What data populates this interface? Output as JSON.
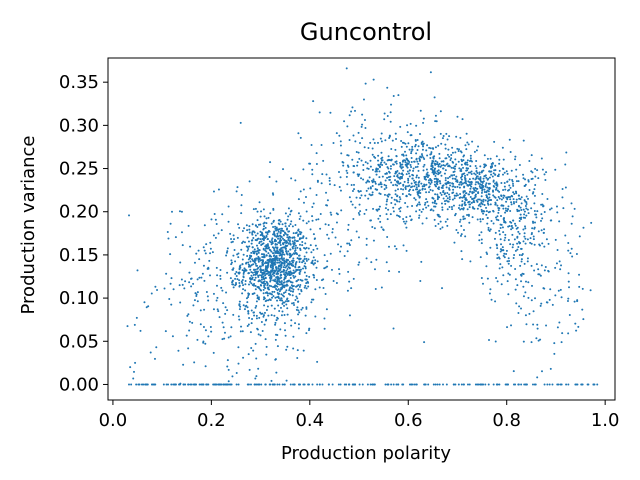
{
  "chart_data": {
    "type": "scatter",
    "title": "Guncontrol",
    "xlabel": "Production polarity",
    "ylabel": "Production variance",
    "xlim": [
      -0.01,
      1.02
    ],
    "ylim": [
      -0.018,
      0.378
    ],
    "x_ticks": [
      0.0,
      0.2,
      0.4,
      0.6,
      0.8,
      1.0
    ],
    "x_tick_labels": [
      "0.0",
      "0.2",
      "0.4",
      "0.6",
      "0.8",
      "1.0"
    ],
    "y_ticks": [
      0.0,
      0.05,
      0.1,
      0.15,
      0.2,
      0.25,
      0.3,
      0.35
    ],
    "y_tick_labels": [
      "0.00",
      "0.05",
      "0.10",
      "0.15",
      "0.20",
      "0.25",
      "0.30",
      "0.35"
    ],
    "grid": false,
    "marker_color": "#1f77b4",
    "clusters": [
      {
        "center": [
          0.33,
          0.14
        ],
        "spread": [
          0.035,
          0.025
        ],
        "count": 900
      },
      {
        "center": [
          0.3,
          0.12
        ],
        "spread": [
          0.08,
          0.05
        ],
        "count": 450
      },
      {
        "center": [
          0.62,
          0.245
        ],
        "spread": [
          0.06,
          0.025
        ],
        "count": 600
      },
      {
        "center": [
          0.74,
          0.225
        ],
        "spread": [
          0.05,
          0.02
        ],
        "count": 450
      },
      {
        "center": [
          0.82,
          0.18
        ],
        "spread": [
          0.05,
          0.04
        ],
        "count": 300
      },
      {
        "center": [
          0.5,
          0.22
        ],
        "spread": [
          0.08,
          0.05
        ],
        "count": 250
      },
      {
        "center": [
          0.88,
          0.1
        ],
        "spread": [
          0.05,
          0.05
        ],
        "count": 100
      },
      {
        "center": [
          0.15,
          0.08
        ],
        "spread": [
          0.06,
          0.05
        ],
        "count": 60
      }
    ],
    "zero_band": {
      "y": 0.0,
      "x_min": 0.03,
      "x_max": 0.99,
      "count": 230
    },
    "outliers": [
      [
        0.475,
        0.366
      ],
      [
        0.58,
        0.335
      ],
      [
        0.51,
        0.33
      ],
      [
        0.42,
        0.315
      ],
      [
        0.7,
        0.31
      ],
      [
        0.12,
        0.2
      ],
      [
        0.035,
        0.02
      ],
      [
        0.045,
        0.025
      ]
    ]
  }
}
